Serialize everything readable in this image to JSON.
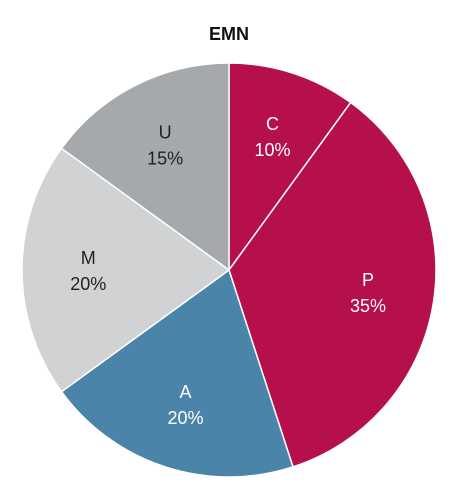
{
  "chart_data": {
    "type": "pie",
    "title": "EMN",
    "slices": [
      {
        "label": "C",
        "value": 10,
        "value_label": "10%",
        "color": "#b5104b",
        "text_color": "#ffffff"
      },
      {
        "label": "P",
        "value": 35,
        "value_label": "35%",
        "color": "#b5104b",
        "text_color": "#ffffff"
      },
      {
        "label": "A",
        "value": 20,
        "value_label": "20%",
        "color": "#4a84a8",
        "text_color": "#ffffff"
      },
      {
        "label": "M",
        "value": 20,
        "value_label": "20%",
        "color": "#d1d2d4",
        "text_color": "#222222"
      },
      {
        "label": "U",
        "value": 15,
        "value_label": "15%",
        "color": "#a5a9ab",
        "text_color": "#222222"
      }
    ]
  }
}
